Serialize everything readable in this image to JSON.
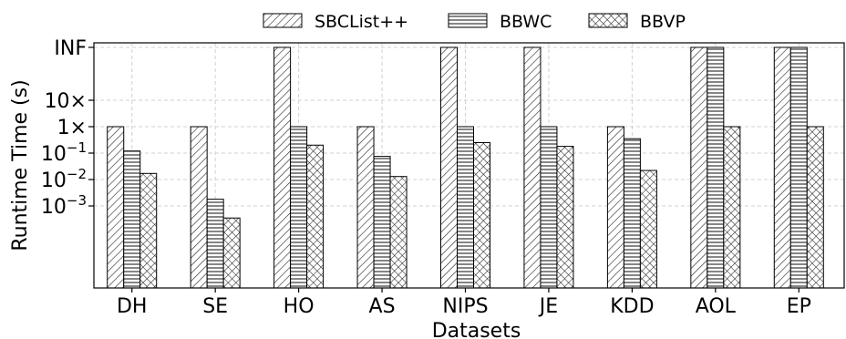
{
  "chart_data": {
    "type": "bar",
    "xlabel": "Datasets",
    "ylabel": "Runtime Time (s)",
    "categories": [
      "DH",
      "SE",
      "HO",
      "AS",
      "NIPS",
      "JE",
      "KDD",
      "AOL",
      "EP"
    ],
    "y_scale": "log",
    "ylim": [
      3e-05,
      1000
    ],
    "y_ticks": [
      {
        "value": 1000,
        "label": "INF"
      },
      {
        "value": 10,
        "label": "10×"
      },
      {
        "value": 1,
        "label": "1×"
      },
      {
        "value": 0.1,
        "label": "10^-1"
      },
      {
        "value": 0.01,
        "label": "10^-2"
      },
      {
        "value": 0.001,
        "label": "10^-3"
      }
    ],
    "grid": true,
    "legend_position": "top-center",
    "series": [
      {
        "name": "SBCList++",
        "pattern": "diagonal-hatch",
        "values": [
          1,
          1,
          1000,
          1,
          1000,
          1000,
          1,
          1000,
          1000
        ]
      },
      {
        "name": "BBWC",
        "pattern": "horizontal-hatch",
        "values": [
          0.12,
          0.0018,
          1,
          0.075,
          1,
          1,
          0.35,
          1000,
          1000
        ]
      },
      {
        "name": "BBVP",
        "pattern": "cross-hatch",
        "values": [
          0.017,
          0.00035,
          0.2,
          0.013,
          0.25,
          0.18,
          0.022,
          1,
          1
        ]
      }
    ]
  }
}
